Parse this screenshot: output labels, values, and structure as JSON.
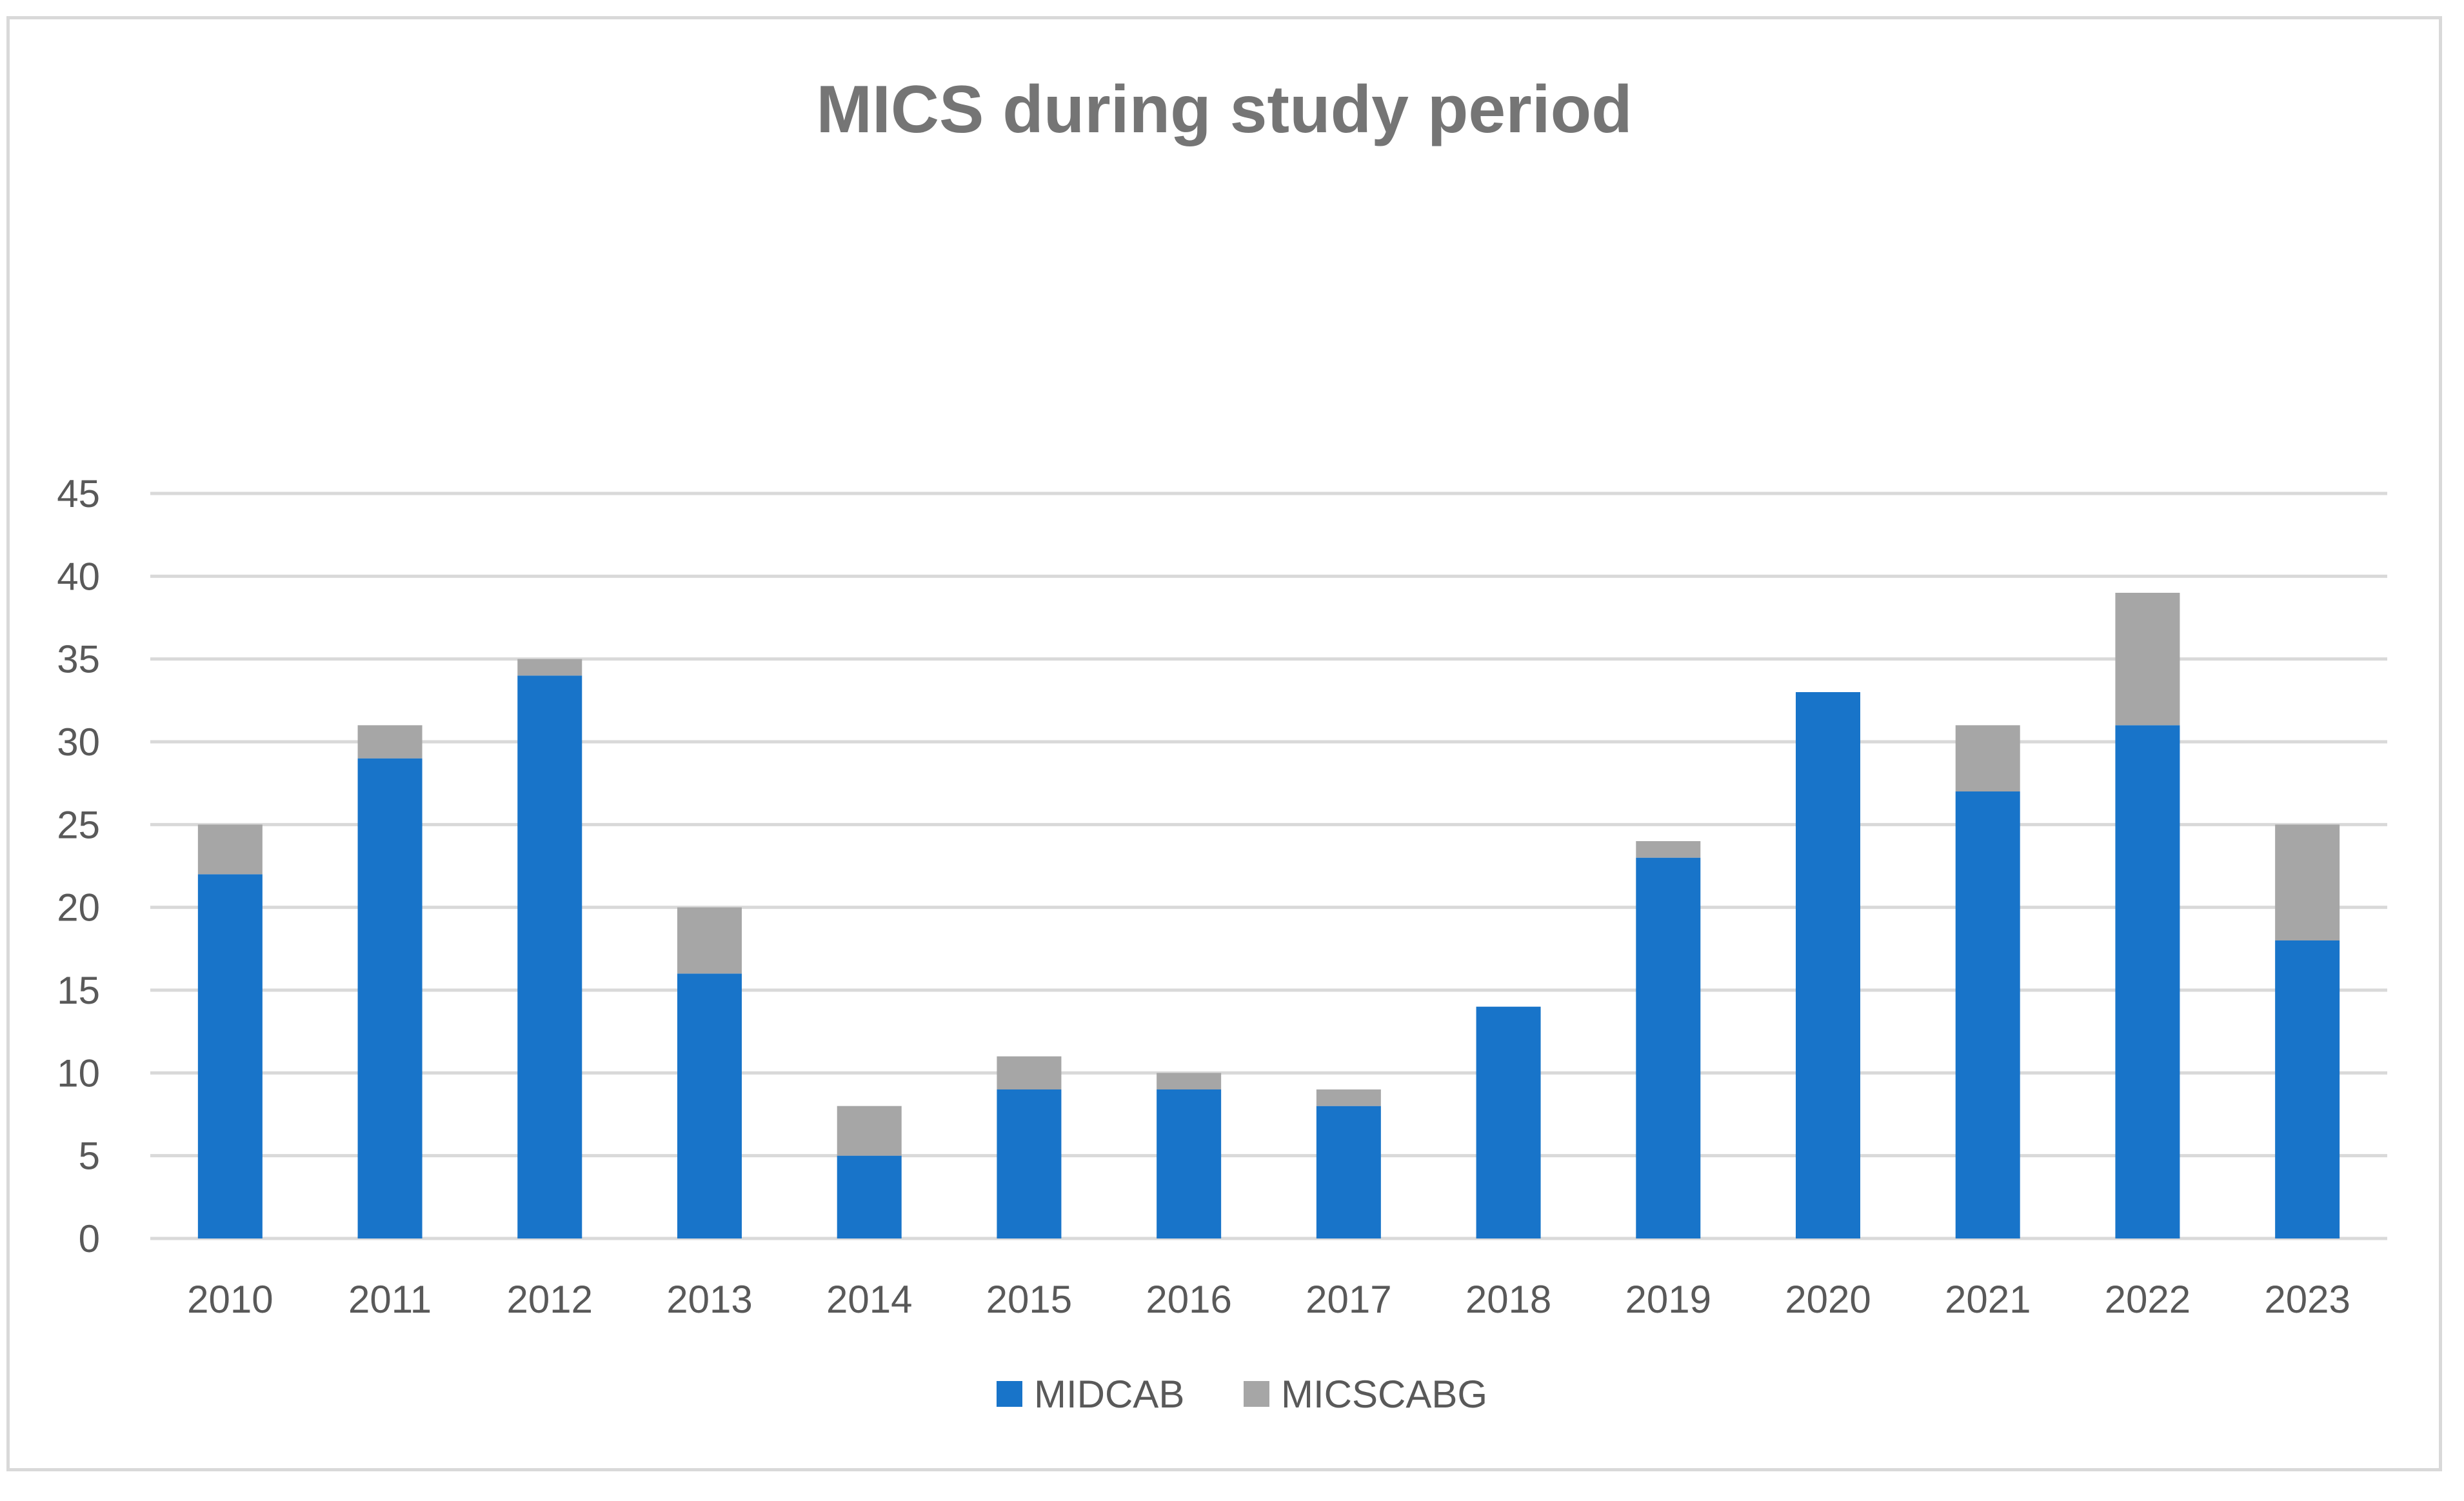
{
  "chart_data": {
    "type": "bar",
    "stacked": true,
    "title": "MICS during study period",
    "xlabel": "",
    "ylabel": "",
    "categories": [
      "2010",
      "2011",
      "2012",
      "2013",
      "2014",
      "2015",
      "2016",
      "2017",
      "2018",
      "2019",
      "2020",
      "2021",
      "2022",
      "2023"
    ],
    "series": [
      {
        "name": "MIDCAB",
        "color": "#1874c9",
        "values": [
          22,
          29,
          34,
          16,
          5,
          9,
          9,
          8,
          14,
          23,
          33,
          27,
          31,
          18
        ]
      },
      {
        "name": "MICSCABG",
        "color": "#a6a6a6",
        "values": [
          3,
          2,
          1,
          4,
          3,
          2,
          1,
          1,
          0,
          1,
          0,
          4,
          8,
          7
        ]
      }
    ],
    "ylim": [
      0,
      45
    ],
    "yticks": [
      0,
      5,
      10,
      15,
      20,
      25,
      30,
      35,
      40,
      45
    ],
    "grid": true,
    "legend_position": "bottom"
  }
}
